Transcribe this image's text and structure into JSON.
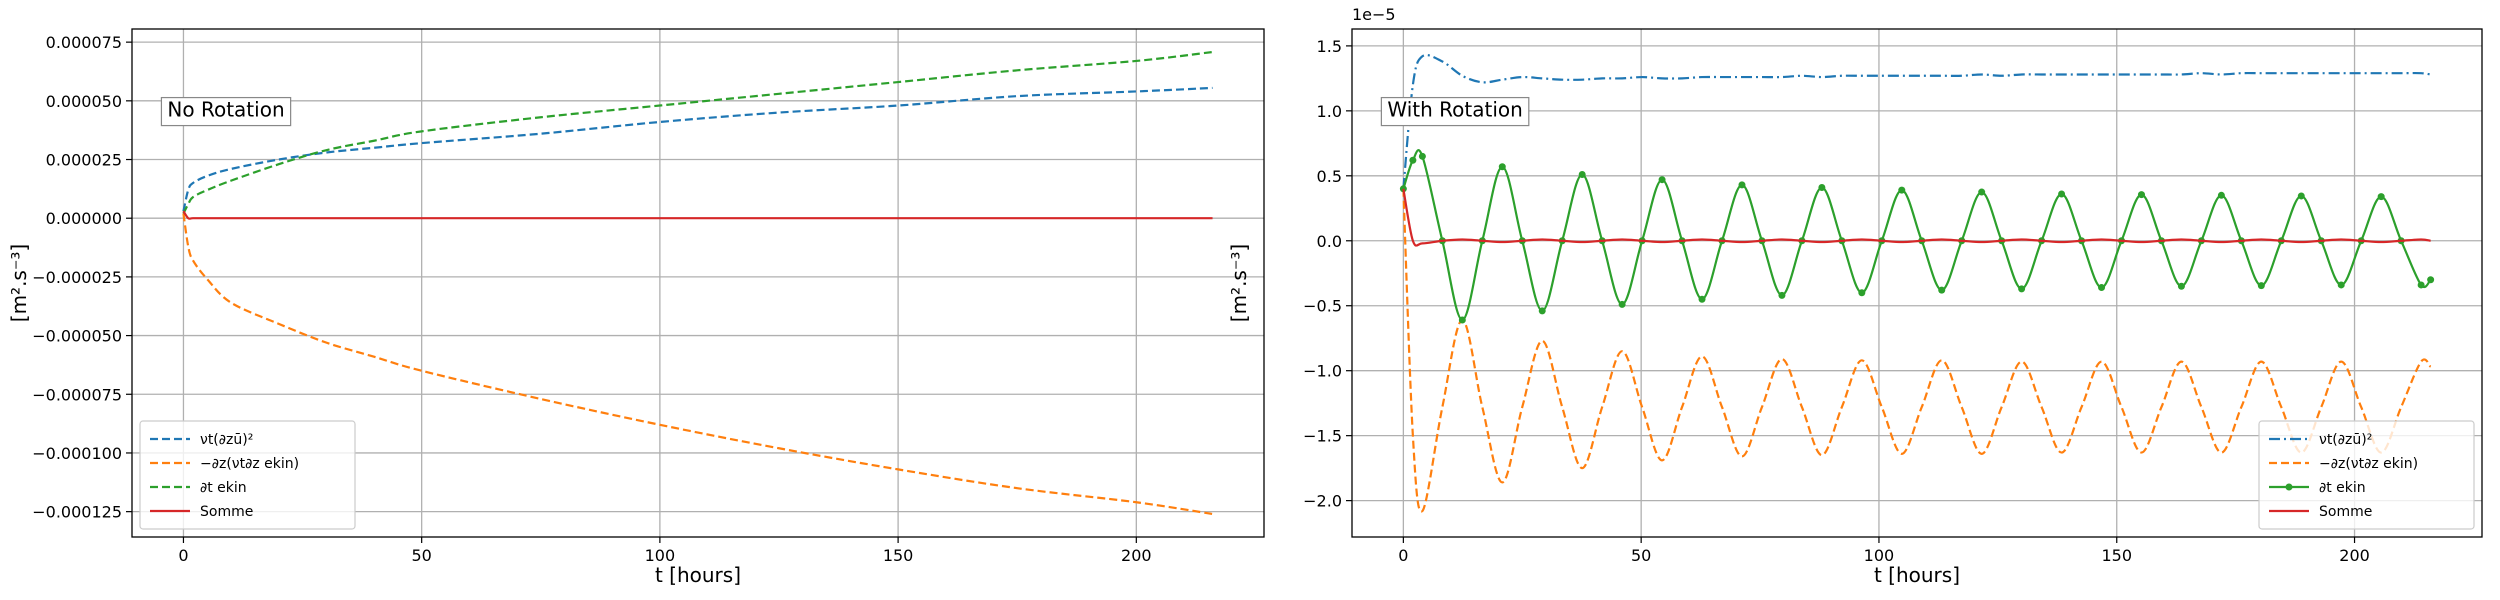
{
  "chart_data": [
    {
      "type": "line",
      "xlabel": "t [hours]",
      "ylabel": "[m².s⁻³]",
      "annotation": "No Rotation",
      "grid": true,
      "legend_loc": "lower left",
      "xlim": [
        -10.8,
        226.8
      ],
      "xticks": [
        0,
        50,
        100,
        150,
        200
      ],
      "ylim": [
        -0.0001358,
        8.06e-05
      ],
      "yticks": [
        {
          "value": -0.000125,
          "label": "−0.000125"
        },
        {
          "value": -0.0001,
          "label": "−0.000100"
        },
        {
          "value": -7.5e-05,
          "label": "−0.000075"
        },
        {
          "value": -5e-05,
          "label": "−0.000050"
        },
        {
          "value": -2.5e-05,
          "label": "−0.000025"
        },
        {
          "value": 0,
          "label": "0.000000"
        },
        {
          "value": 2.5e-05,
          "label": "0.000025"
        },
        {
          "value": 5e-05,
          "label": "0.000050"
        },
        {
          "value": 7.5e-05,
          "label": "0.000075"
        }
      ],
      "x": [
        0,
        1,
        2,
        5,
        10,
        20,
        30,
        40,
        50,
        75,
        100,
        125,
        150,
        175,
        200,
        216
      ],
      "series": [
        {
          "name": "νt(∂zū)²",
          "color": "#1f77b4",
          "linestyle": "dashed",
          "values": [
            3e-06,
            1.2e-05,
            1.5e-05,
            1.8e-05,
            2.1e-05,
            2.5e-05,
            2.8e-05,
            3e-05,
            3.2e-05,
            3.6e-05,
            4.1e-05,
            4.5e-05,
            4.8e-05,
            5.2e-05,
            5.4e-05,
            5.55e-05
          ]
        },
        {
          "name": "−∂z(νt∂z ekin)",
          "color": "#ff7f0e",
          "linestyle": "dashed",
          "values": [
            2e-06,
            -1.2e-05,
            -1.8e-05,
            -2.6e-05,
            -3.6e-05,
            -4.5e-05,
            -5.3e-05,
            -5.9e-05,
            -6.5e-05,
            -7.7e-05,
            -8.8e-05,
            -9.8e-05,
            -0.000107,
            -0.000115,
            -0.000121,
            -0.000126
          ]
        },
        {
          "name": "∂t ekin",
          "color": "#2ca02c",
          "linestyle": "dashed",
          "values": [
            2e-06,
            6e-06,
            9e-06,
            1.2e-05,
            1.6e-05,
            2.3e-05,
            2.9e-05,
            3.3e-05,
            3.7e-05,
            4.3e-05,
            4.8e-05,
            5.3e-05,
            5.8e-05,
            6.3e-05,
            6.7e-05,
            7.08e-05
          ]
        },
        {
          "name": "Somme",
          "color": "#d62728",
          "linestyle": "solid",
          "values": [
            3e-06,
            0,
            0,
            0,
            0,
            0,
            0,
            0,
            0,
            0,
            0,
            0,
            0,
            0,
            0,
            0
          ]
        }
      ]
    },
    {
      "type": "line",
      "xlabel": "t [hours]",
      "ylabel": "[m².s⁻³]",
      "annotation": "With Rotation",
      "y_offset_label": "1e−5",
      "grid": true,
      "legend_loc": "lower right",
      "xlim": [
        -10.8,
        226.8
      ],
      "xticks": [
        0,
        50,
        100,
        150,
        200
      ],
      "ylim": [
        -2.28,
        1.63
      ],
      "yticks": [
        {
          "value": -2,
          "label": "−2.0"
        },
        {
          "value": -1.5,
          "label": "−1.5"
        },
        {
          "value": -1,
          "label": "−1.0"
        },
        {
          "value": -0.5,
          "label": "−0.5"
        },
        {
          "value": 0,
          "label": "0.0"
        },
        0.5,
        {
          "value": 1,
          "label": "1.0"
        },
        1.5
      ],
      "x": [
        0,
        2,
        4,
        8.2,
        12.4,
        16.6,
        20.8,
        25,
        29.2,
        33.4,
        37.6,
        41.8,
        46,
        50.2,
        54.4,
        58.6,
        62.8,
        67,
        71.2,
        75.4,
        79.6,
        83.8,
        88,
        92.2,
        96.4,
        100.6,
        104.8,
        109,
        113.2,
        117.4,
        121.6,
        125.8,
        130,
        134.2,
        138.4,
        142.6,
        146.8,
        151,
        155.2,
        159.4,
        163.6,
        167.8,
        172,
        176.2,
        180.4,
        184.6,
        188.8,
        193,
        197.2,
        201.4,
        205.6,
        209.8,
        214,
        216
      ],
      "series": [
        {
          "name": "νt(∂zū)²",
          "color": "#1f77b4",
          "linestyle": "dashdot",
          "values": [
            0.4,
            1.2,
            1.42,
            1.38,
            1.27,
            1.22,
            1.24,
            1.26,
            1.25,
            1.24,
            1.24,
            1.25,
            1.25,
            1.26,
            1.25,
            1.25,
            1.26,
            1.26,
            1.26,
            1.26,
            1.26,
            1.27,
            1.26,
            1.27,
            1.27,
            1.27,
            1.27,
            1.27,
            1.27,
            1.27,
            1.28,
            1.27,
            1.28,
            1.28,
            1.28,
            1.28,
            1.28,
            1.28,
            1.28,
            1.28,
            1.28,
            1.29,
            1.28,
            1.29,
            1.29,
            1.29,
            1.29,
            1.29,
            1.29,
            1.29,
            1.29,
            1.29,
            1.29,
            1.28
          ]
        },
        {
          "name": "−∂z(νt∂z ekin)",
          "color": "#ff7f0e",
          "linestyle": "dashed",
          "values": [
            0.4,
            -1.5,
            -2.08,
            -1.28,
            -0.61,
            -1.28,
            -1.86,
            -1.28,
            -0.77,
            -1.28,
            -1.75,
            -1.28,
            -0.85,
            -1.28,
            -1.69,
            -1.28,
            -0.89,
            -1.28,
            -1.66,
            -1.28,
            -0.91,
            -1.28,
            -1.65,
            -1.28,
            -0.92,
            -1.28,
            -1.64,
            -1.28,
            -0.92,
            -1.28,
            -1.64,
            -1.28,
            -0.93,
            -1.28,
            -1.63,
            -1.28,
            -0.93,
            -1.28,
            -1.63,
            -1.28,
            -0.93,
            -1.28,
            -1.63,
            -1.28,
            -0.93,
            -1.28,
            -1.63,
            -1.28,
            -0.93,
            -1.28,
            -1.63,
            -1.28,
            -0.93,
            -0.97
          ]
        },
        {
          "name": "∂t ekin",
          "color": "#2ca02c",
          "linestyle": "solid",
          "marker": "o",
          "values": [
            0.4,
            0.62,
            0.65,
            0,
            -0.61,
            0,
            0.57,
            0,
            -0.54,
            0,
            0.51,
            0,
            -0.49,
            0,
            0.47,
            0,
            -0.45,
            0,
            0.43,
            0,
            -0.42,
            0,
            0.41,
            0,
            -0.4,
            0,
            0.39,
            0,
            -0.38,
            0,
            0.375,
            0,
            -0.37,
            0,
            0.36,
            0,
            -0.36,
            0,
            0.355,
            0,
            -0.35,
            0,
            0.35,
            0,
            -0.345,
            0,
            0.345,
            0,
            -0.34,
            0,
            0.34,
            0,
            -0.34,
            -0.3
          ]
        },
        {
          "name": "Somme",
          "color": "#d62728",
          "linestyle": "solid",
          "values": [
            0.4,
            0,
            -0.02,
            0,
            0.01,
            0,
            -0.01,
            0,
            0.01,
            0,
            -0.01,
            0,
            0.01,
            0,
            -0.01,
            0,
            0.01,
            0,
            -0.01,
            0,
            0.01,
            0,
            -0.01,
            0,
            0.01,
            0,
            -0.01,
            0,
            0.01,
            0,
            -0.01,
            0,
            0.01,
            0,
            -0.01,
            0,
            0.01,
            0,
            -0.01,
            0,
            0.01,
            0,
            -0.01,
            0,
            0.01,
            0,
            -0.01,
            0,
            0.01,
            0,
            -0.01,
            0,
            0.01,
            0
          ]
        }
      ]
    }
  ]
}
